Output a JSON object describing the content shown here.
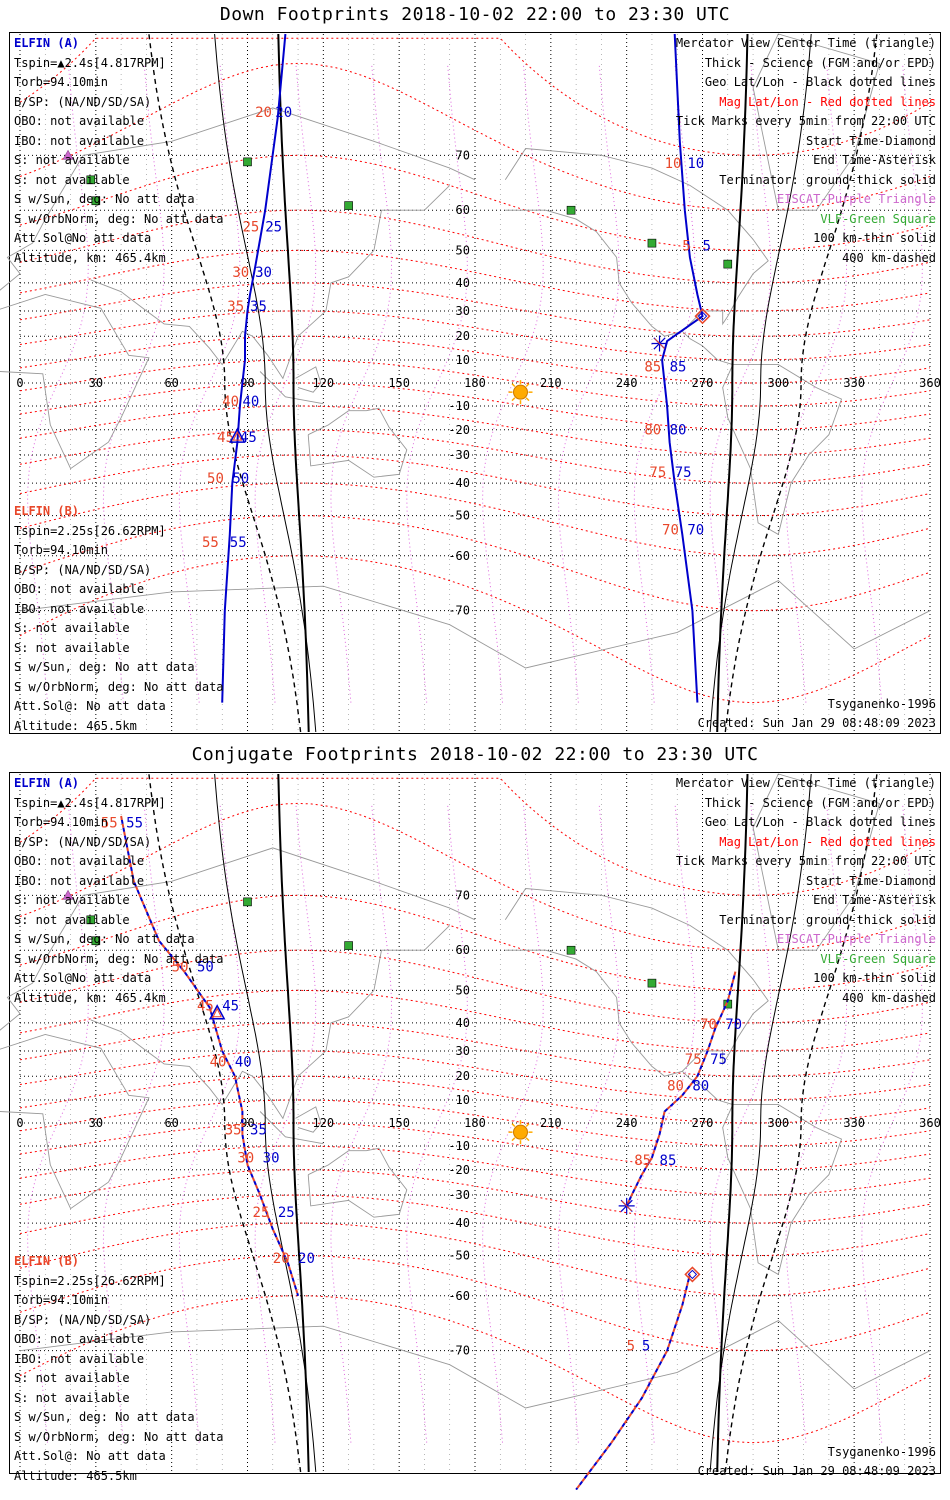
{
  "panels": [
    {
      "id": "down",
      "title": "Down Footprints 2018-10-02 22:00 to 23:30 UTC",
      "elfin_a": {
        "name": "ELFIN (A)",
        "lines": [
          "Tspin=▲2.4s[4.817RPM]",
          "Torb=94.10min",
          "B/SP: (NA/ND/SD/SA)",
          "OBO: not available",
          "IBO: not available",
          "S: not available",
          "S: not available",
          "S w/Sun, deg: No att data",
          "S w/OrbNorm, deg: No att data",
          "Att.Sol@No att data",
          "Altitude, km: 465.4km"
        ]
      },
      "elfin_b": {
        "name": "ELFIN (B)",
        "lines": [
          "Tspin=2.25s[26.62RPM]",
          "Torb=94.10min",
          "B/SP: (NA/ND/SD/SA)",
          "OBO: not available",
          "IBO: not available",
          "S: not available",
          "S: not available",
          "S w/Sun, deg: No att data",
          "S w/OrbNorm, deg: No att data",
          "Att.Sol@: No att data",
          "Altitude: 465.5km"
        ]
      },
      "legend": [
        "Mercator View Center Time (triangle)",
        "Thick - Science (FGM and/or EPD)",
        "Geo Lat/Lon - Black dotted lines",
        "Mag Lat/Lon - Red dotted lines",
        "Tick Marks every 5min from 22:00 UTC",
        "Start Time-Diamond",
        "End Time-Asterisk",
        "Terminator: ground-thick solid",
        "EISCAT-Purple Triangle",
        "VLF-Green Square",
        "100 km-thin solid",
        "400 km-dashed"
      ],
      "model": "Tsyganenko-1996",
      "created": "Created: Sun Jan 29 08:48:09 2023"
    },
    {
      "id": "conjugate",
      "title": "Conjugate Footprints 2018-10-02 22:00 to 23:30 UTC",
      "elfin_a": {
        "name": "ELFIN (A)",
        "lines": [
          "Tspin=▲2.4s[4.817RPM]",
          "Torb=94.10min",
          "B/SP: (NA/ND/SD/SA)",
          "OBO: not available",
          "IBO: not available",
          "S: not available",
          "S: not available",
          "S w/Sun, deg: No att data",
          "S w/OrbNorm, deg: No att data",
          "Att.Sol@No att data",
          "Altitude, km: 465.4km"
        ]
      },
      "elfin_b": {
        "name": "ELFIN (B)",
        "lines": [
          "Tspin=2.25s[26.62RPM]",
          "Torb=94.10min",
          "B/SP: (NA/ND/SD/SA)",
          "OBO: not available",
          "IBO: not available",
          "S: not available",
          "S: not available",
          "S w/Sun, deg: No att data",
          "S w/OrbNorm, deg: No att data",
          "Att.Sol@: No att data",
          "Altitude: 465.5km"
        ]
      },
      "legend": [
        "Mercator View Center Time (triangle)",
        "Thick - Science (FGM and/or EPD)",
        "Geo Lat/Lon - Black dotted lines",
        "Mag Lat/Lon - Red dotted lines",
        "Tick Marks every 5min from 22:00 UTC",
        "Start Time-Diamond",
        "End Time-Asterisk",
        "Terminator: ground-thick solid",
        "EISCAT-Purple Triangle",
        "VLF-Green Square",
        "100 km-thin solid",
        "400 km-dashed"
      ],
      "model": "Tsyganenko-1996",
      "created": "Created: Sun Jan 29 08:48:09 2023"
    }
  ],
  "axes": {
    "lon_ticks": [
      "0",
      "30",
      "60",
      "90",
      "120",
      "150",
      "180",
      "210",
      "240",
      "270",
      "300",
      "330",
      "360"
    ],
    "lat_ticks": [
      "70",
      "60",
      "50",
      "40",
      "30",
      "20",
      "10",
      "-10",
      "-20",
      "-30",
      "-40",
      "-50",
      "-60",
      "-70"
    ]
  },
  "colors": {
    "elfin_a": "#0000cc",
    "elfin_b": "#e8472a",
    "mag_grid": "#ff0000",
    "geo_grid": "#000000",
    "vlf": "#33aa33",
    "eiscat": "#cc66cc",
    "sun": "#ffaa00"
  },
  "chart_data": [
    {
      "type": "map-trace",
      "panel": "down",
      "vlf_stations": [
        [
          90,
          69
        ],
        [
          28,
          66
        ],
        [
          30,
          62
        ],
        [
          130,
          61
        ],
        [
          218,
          60
        ],
        [
          250,
          52
        ],
        [
          280,
          46
        ]
      ],
      "eiscat": [
        [
          19,
          70
        ]
      ],
      "sun": [
        198,
        -4
      ],
      "elfin_a_track": {
        "points": [
          [
            105,
            82
          ],
          [
            102,
            75
          ],
          [
            97,
            60
          ],
          [
            93,
            45
          ],
          [
            91,
            36
          ],
          [
            90,
            30
          ],
          [
            89,
            20
          ],
          [
            89,
            10
          ],
          [
            88,
            0
          ],
          [
            87,
            -10
          ],
          [
            86,
            -25
          ],
          [
            84,
            -40
          ],
          [
            83,
            -55
          ],
          [
            81,
            -70
          ],
          [
            80,
            -80
          ]
        ],
        "tick_labels": [
          {
            "t": "20",
            "lon": 101,
            "lat": 75
          },
          {
            "t": "25",
            "lon": 97,
            "lat": 55
          },
          {
            "t": "30",
            "lon": 93,
            "lat": 42
          },
          {
            "t": "35",
            "lon": 91,
            "lat": 30
          },
          {
            "t": "40",
            "lon": 88,
            "lat": -10
          },
          {
            "t": "45",
            "lon": 87,
            "lat": -25
          },
          {
            "t": "50",
            "lon": 84,
            "lat": -40
          },
          {
            "t": "55",
            "lon": 83,
            "lat": -58
          }
        ]
      },
      "elfin_b_track": {
        "tick_labels": [
          {
            "t": "20",
            "lon": 93,
            "lat": 75
          },
          {
            "t": "25",
            "lon": 88,
            "lat": 55
          },
          {
            "t": "30",
            "lon": 84,
            "lat": 42
          },
          {
            "t": "35",
            "lon": 82,
            "lat": 30
          },
          {
            "t": "40",
            "lon": 80,
            "lat": -10
          },
          {
            "t": "45",
            "lon": 78,
            "lat": -25
          },
          {
            "t": "50",
            "lon": 74,
            "lat": -40
          },
          {
            "t": "55",
            "lon": 72,
            "lat": -58
          }
        ]
      },
      "elfin_a_track2": {
        "points": [
          [
            259,
            82
          ],
          [
            261,
            72
          ],
          [
            263,
            60
          ],
          [
            265,
            48
          ],
          [
            268,
            36
          ],
          [
            270,
            28
          ],
          [
            256,
            18
          ],
          [
            254,
            10
          ],
          [
            255,
            0
          ],
          [
            256,
            -10
          ],
          [
            257,
            -25
          ],
          [
            259,
            -40
          ],
          [
            262,
            -55
          ],
          [
            266,
            -70
          ],
          [
            268,
            -80
          ]
        ],
        "tick_labels": [
          {
            "t": "10",
            "lon": 264,
            "lat": 68
          },
          {
            "t": "5",
            "lon": 270,
            "lat": 50
          },
          {
            "t": "85",
            "lon": 257,
            "lat": 5
          },
          {
            "t": "80",
            "lon": 257,
            "lat": -22
          },
          {
            "t": "75",
            "lon": 259,
            "lat": -38
          },
          {
            "t": "70",
            "lon": 264,
            "lat": -55
          }
        ]
      },
      "elfin_b_track2": {
        "tick_labels": [
          {
            "t": "10",
            "lon": 255,
            "lat": 68
          },
          {
            "t": "5",
            "lon": 262,
            "lat": 50
          },
          {
            "t": "85",
            "lon": 247,
            "lat": 5
          },
          {
            "t": "80",
            "lon": 247,
            "lat": -22
          },
          {
            "t": "75",
            "lon": 249,
            "lat": -38
          },
          {
            "t": "70",
            "lon": 254,
            "lat": -55
          }
        ]
      },
      "start_diamond": [
        270,
        28
      ],
      "end_asterisk": [
        253,
        17
      ],
      "center_triangle": [
        86,
        -23
      ]
    },
    {
      "type": "map-trace",
      "panel": "conjugate",
      "vlf_stations": [
        [
          90,
          69
        ],
        [
          28,
          66
        ],
        [
          30,
          62
        ],
        [
          130,
          61
        ],
        [
          218,
          60
        ],
        [
          250,
          52
        ],
        [
          280,
          46
        ]
      ],
      "eiscat": [
        [
          19,
          70
        ]
      ],
      "sun": [
        198,
        -4
      ],
      "elfin_a_track": {
        "points": [
          [
            40,
            79
          ],
          [
            45,
            72
          ],
          [
            55,
            62
          ],
          [
            65,
            55
          ],
          [
            75,
            45
          ],
          [
            80,
            30
          ],
          [
            85,
            20
          ],
          [
            88,
            5
          ],
          [
            88,
            -5
          ],
          [
            90,
            -18
          ],
          [
            95,
            -30
          ],
          [
            100,
            -42
          ],
          [
            106,
            -52
          ],
          [
            110,
            -60
          ]
        ],
        "tick_labels": [
          {
            "t": "55",
            "lon": 42,
            "lat": 78
          },
          {
            "t": "50",
            "lon": 70,
            "lat": 55
          },
          {
            "t": "45",
            "lon": 80,
            "lat": 44
          },
          {
            "t": "40",
            "lon": 85,
            "lat": 24
          },
          {
            "t": "35",
            "lon": 91,
            "lat": -5
          },
          {
            "t": "30",
            "lon": 96,
            "lat": -17
          },
          {
            "t": "25",
            "lon": 102,
            "lat": -38
          },
          {
            "t": "20",
            "lon": 110,
            "lat": -52
          }
        ]
      },
      "elfin_b_track": {
        "tick_labels": [
          {
            "t": "55",
            "lon": 32,
            "lat": 78
          },
          {
            "t": "50",
            "lon": 60,
            "lat": 55
          },
          {
            "t": "45",
            "lon": 70,
            "lat": 44
          },
          {
            "t": "40",
            "lon": 75,
            "lat": 24
          },
          {
            "t": "35",
            "lon": 81,
            "lat": -5
          },
          {
            "t": "30",
            "lon": 86,
            "lat": -17
          },
          {
            "t": "25",
            "lon": 92,
            "lat": -38
          },
          {
            "t": "20",
            "lon": 100,
            "lat": -52
          }
        ]
      },
      "elfin_a_track2": {
        "points": [
          [
            283,
            55
          ],
          [
            280,
            47
          ],
          [
            275,
            38
          ],
          [
            272,
            30
          ],
          [
            268,
            20
          ],
          [
            262,
            12
          ],
          [
            255,
            5
          ],
          [
            253,
            -5
          ],
          [
            250,
            -15
          ],
          [
            246,
            -22
          ],
          [
            242,
            -30
          ],
          [
            240,
            -34
          ]
        ],
        "tick_labels": [
          {
            "t": "70",
            "lon": 279,
            "lat": 38
          },
          {
            "t": "75",
            "lon": 273,
            "lat": 25
          },
          {
            "t": "80",
            "lon": 266,
            "lat": 14
          },
          {
            "t": "85",
            "lon": 253,
            "lat": -18
          }
        ]
      },
      "elfin_b_track2": {
        "tick_labels": [
          {
            "t": "70",
            "lon": 269,
            "lat": 38
          },
          {
            "t": "75",
            "lon": 263,
            "lat": 25
          },
          {
            "t": "80",
            "lon": 256,
            "lat": 14
          },
          {
            "t": "85",
            "lon": 243,
            "lat": -18
          }
        ]
      },
      "elfin_a_track3": {
        "points": [
          [
            265,
            -55
          ],
          [
            262,
            -62
          ],
          [
            256,
            -70
          ],
          [
            246,
            -76
          ],
          [
            234,
            -80
          ],
          [
            220,
            -83
          ]
        ],
        "tick_labels": [
          {
            "t": "5",
            "lon": 246,
            "lat": -70
          }
        ]
      },
      "elfin_b_track3": {
        "tick_labels": [
          {
            "t": "5",
            "lon": 240,
            "lat": -70
          }
        ]
      },
      "start_diamond": [
        266,
        -55
      ],
      "end_asterisk": [
        240,
        -34
      ],
      "center_triangle": [
        78,
        43
      ]
    }
  ]
}
